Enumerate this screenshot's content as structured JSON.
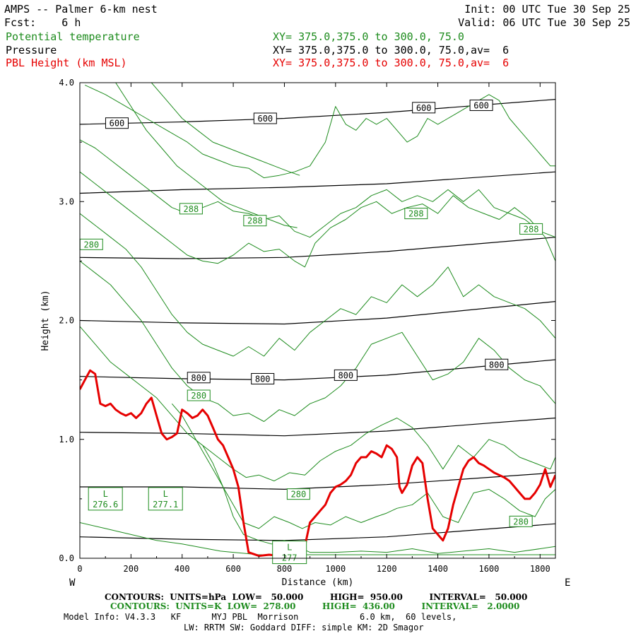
{
  "header": {
    "title": "AMPS -- Palmer 6-km nest",
    "fcst_label": "Fcst:",
    "fcst_value": "6 h",
    "init": "Init: 00 UTC Tue 30 Sep 25",
    "valid": "Valid: 06 UTC Tue 30 Sep 25",
    "field1": "Potential temperature",
    "field1_xy": "XY= 375.0,375.0 to 300.0, 75.0",
    "field2": "Pressure",
    "field2_xy": "XY= 375.0,375.0 to 300.0, 75.0,av=  6",
    "field3": "PBL Height (km MSL)",
    "field3_xy": "XY= 375.0,375.0 to 300.0, 75.0,av=  6"
  },
  "footer": {
    "contours_p": "CONTOURS:  UNITS=hPa  LOW=   50.000         HIGH=  950.00         INTERVAL=   50.000",
    "contours_k": "CONTOURS:  UNITS=K  LOW=  278.00         HIGH=  436.00         INTERVAL=   2.0000",
    "model1": "Model Info: V4.3.3   KF      MYJ PBL  Morrison            6.0 km,  60 levels,",
    "model2": "LW: RRTM SW: Goddard DIFF: simple KM: 2D Smagor"
  },
  "colors": {
    "theta": "#1e8c1e",
    "pressure": "#000000",
    "pbl": "#e60000"
  },
  "chart_data": {
    "type": "line",
    "xlabel": "Distance (km)",
    "ylabel": "Height (km)",
    "xlim": [
      0,
      1860
    ],
    "ylim": [
      0,
      4.0
    ],
    "xticks": [
      0,
      200,
      400,
      600,
      800,
      1000,
      1200,
      1400,
      1600,
      1800
    ],
    "yticks": [
      0.0,
      1.0,
      2.0,
      3.0,
      4.0
    ],
    "xtick_labels": [
      "0",
      "200",
      "400",
      "600",
      "800",
      "1000",
      "1200",
      "1400",
      "1600",
      "1800"
    ],
    "ytick_labels": [
      "0.0",
      "1.0",
      "2.0",
      "3.0",
      "4.0"
    ],
    "left_end_label": "W",
    "right_end_label": "E",
    "pressure_contours": [
      {
        "x": [
          0,
          400,
          800,
          1200,
          1860
        ],
        "y": [
          0.18,
          0.16,
          0.15,
          0.18,
          0.29
        ]
      },
      {
        "x": [
          0,
          400,
          800,
          1200,
          1860
        ],
        "y": [
          0.6,
          0.6,
          0.58,
          0.62,
          0.72
        ]
      },
      {
        "x": [
          0,
          400,
          800,
          1200,
          1860
        ],
        "y": [
          1.06,
          1.05,
          1.03,
          1.07,
          1.18
        ]
      },
      {
        "x": [
          0,
          400,
          800,
          1200,
          1860
        ],
        "y": [
          1.53,
          1.51,
          1.5,
          1.54,
          1.67
        ]
      },
      {
        "x": [
          0,
          400,
          800,
          1200,
          1860
        ],
        "y": [
          2.0,
          1.98,
          1.97,
          2.02,
          2.16
        ]
      },
      {
        "x": [
          0,
          400,
          800,
          1200,
          1860
        ],
        "y": [
          2.53,
          2.52,
          2.53,
          2.58,
          2.7
        ]
      },
      {
        "x": [
          0,
          400,
          800,
          1200,
          1860
        ],
        "y": [
          3.07,
          3.1,
          3.12,
          3.15,
          3.25
        ]
      },
      {
        "x": [
          0,
          400,
          800,
          1200,
          1860
        ],
        "y": [
          3.65,
          3.67,
          3.7,
          3.75,
          3.86
        ]
      }
    ],
    "pressure_labels": [
      {
        "x": 145,
        "y": 3.66,
        "text": "600"
      },
      {
        "x": 725,
        "y": 3.7,
        "text": "600"
      },
      {
        "x": 1345,
        "y": 3.79,
        "text": "600"
      },
      {
        "x": 1570,
        "y": 3.81,
        "text": "600"
      },
      {
        "x": 465,
        "y": 1.52,
        "text": "800"
      },
      {
        "x": 715,
        "y": 1.51,
        "text": "800"
      },
      {
        "x": 1040,
        "y": 1.54,
        "text": "800"
      },
      {
        "x": 1630,
        "y": 1.63,
        "text": "800"
      }
    ],
    "theta_contours": [
      {
        "x": [
          0,
          100,
          200,
          300,
          400,
          500,
          550,
          600,
          650,
          700,
          1860
        ],
        "y": [
          0.3,
          0.25,
          0.2,
          0.15,
          0.12,
          0.08,
          0.06,
          0.05,
          0.04,
          0.03,
          0.03
        ]
      },
      {
        "x": [
          480,
          520,
          560,
          600,
          640,
          700,
          750,
          800,
          850,
          900,
          1000,
          1100,
          1200,
          1300,
          1400,
          1500,
          1600,
          1700,
          1800,
          1860
        ],
        "y": [
          0.95,
          0.8,
          0.6,
          0.35,
          0.2,
          0.15,
          0.12,
          0.15,
          0.1,
          0.05,
          0.05,
          0.06,
          0.05,
          0.08,
          0.04,
          0.06,
          0.08,
          0.05,
          0.08,
          0.1
        ]
      },
      {
        "x": [
          360,
          400,
          440,
          480,
          520,
          560,
          600,
          640,
          700,
          760,
          820,
          870,
          920,
          980,
          1040,
          1100,
          1160,
          1200,
          1240,
          1300,
          1360,
          1420,
          1480,
          1540,
          1600,
          1660,
          1720,
          1780,
          1820,
          1860
        ],
        "y": [
          1.3,
          1.2,
          1.05,
          0.9,
          0.75,
          0.6,
          0.45,
          0.3,
          0.25,
          0.35,
          0.3,
          0.25,
          0.3,
          0.28,
          0.35,
          0.3,
          0.35,
          0.38,
          0.42,
          0.45,
          0.55,
          0.35,
          0.3,
          0.55,
          0.58,
          0.5,
          0.4,
          0.35,
          0.5,
          0.58
        ]
      },
      {
        "x": [
          0,
          60,
          120,
          180,
          240,
          300,
          360,
          420,
          480,
          540,
          600,
          650,
          700,
          760,
          820,
          880,
          940,
          1000,
          1060,
          1120,
          1180,
          1240,
          1300,
          1360,
          1420,
          1480,
          1540,
          1600,
          1660,
          1720,
          1780,
          1840,
          1860
        ],
        "y": [
          1.95,
          1.8,
          1.65,
          1.55,
          1.45,
          1.35,
          1.2,
          1.05,
          0.95,
          0.85,
          0.75,
          0.68,
          0.7,
          0.65,
          0.72,
          0.7,
          0.82,
          0.9,
          0.95,
          1.05,
          1.12,
          1.18,
          1.1,
          0.95,
          0.75,
          0.95,
          0.85,
          1.0,
          0.95,
          0.85,
          0.8,
          0.75,
          0.85
        ]
      },
      {
        "x": [
          0,
          60,
          120,
          180,
          240,
          300,
          360,
          420,
          480,
          540,
          600,
          660,
          720,
          780,
          840,
          900,
          960,
          1020,
          1080,
          1140,
          1200,
          1260,
          1320,
          1380,
          1440,
          1500,
          1560,
          1620,
          1680,
          1740,
          1800,
          1840,
          1860
        ],
        "y": [
          2.5,
          2.4,
          2.3,
          2.15,
          2.0,
          1.8,
          1.6,
          1.45,
          1.35,
          1.3,
          1.2,
          1.22,
          1.15,
          1.25,
          1.2,
          1.3,
          1.35,
          1.45,
          1.6,
          1.8,
          1.85,
          1.9,
          1.7,
          1.5,
          1.55,
          1.65,
          1.85,
          1.75,
          1.6,
          1.5,
          1.45,
          1.35,
          1.3
        ]
      },
      {
        "x": [
          0,
          60,
          120,
          180,
          240,
          300,
          360,
          420,
          480,
          540,
          600,
          660,
          720,
          780,
          840,
          900,
          960,
          1020,
          1080,
          1140,
          1200,
          1260,
          1320,
          1380,
          1440,
          1500,
          1560,
          1620,
          1680,
          1740,
          1800,
          1840,
          1860
        ],
        "y": [
          2.9,
          2.8,
          2.7,
          2.6,
          2.45,
          2.25,
          2.05,
          1.9,
          1.8,
          1.75,
          1.7,
          1.78,
          1.7,
          1.85,
          1.75,
          1.9,
          2.0,
          2.1,
          2.05,
          2.2,
          2.15,
          2.3,
          2.2,
          2.3,
          2.45,
          2.2,
          2.3,
          2.2,
          2.15,
          2.1,
          2.0,
          1.9,
          1.85
        ]
      },
      {
        "x": [
          0,
          60,
          120,
          180,
          240,
          300,
          360,
          420,
          480,
          540,
          600,
          660,
          720,
          780,
          840,
          880,
          920,
          980,
          1040,
          1100,
          1160,
          1220,
          1280,
          1340,
          1400,
          1460,
          1520,
          1580,
          1640,
          1700,
          1760,
          1820,
          1860
        ],
        "y": [
          3.25,
          3.15,
          3.05,
          2.95,
          2.85,
          2.75,
          2.65,
          2.55,
          2.5,
          2.48,
          2.55,
          2.65,
          2.58,
          2.6,
          2.5,
          2.45,
          2.65,
          2.78,
          2.85,
          2.95,
          3.0,
          2.9,
          2.95,
          2.98,
          2.9,
          3.05,
          2.95,
          2.9,
          2.85,
          2.95,
          2.85,
          2.7,
          2.5
        ]
      },
      {
        "x": [
          0,
          60,
          120,
          180,
          240,
          300,
          360,
          420,
          480,
          540,
          600,
          660,
          720,
          780,
          840,
          900,
          960,
          1020,
          1080,
          1140,
          1200,
          1260,
          1320,
          1380,
          1440,
          1500,
          1560,
          1620,
          1680,
          1740,
          1800,
          1860
        ],
        "y": [
          3.52,
          3.45,
          3.35,
          3.25,
          3.15,
          3.05,
          2.95,
          2.9,
          2.95,
          3.0,
          2.92,
          2.9,
          2.85,
          2.88,
          2.75,
          2.7,
          2.8,
          2.9,
          2.95,
          3.05,
          3.1,
          3.0,
          3.05,
          3.0,
          3.1,
          3.0,
          3.1,
          2.95,
          2.9,
          2.85,
          2.75,
          2.7
        ]
      },
      {
        "x": [
          20,
          100,
          180,
          260,
          340,
          420,
          480,
          540,
          600,
          660,
          720,
          780,
          840,
          900,
          960,
          1000,
          1040,
          1080,
          1120,
          1160,
          1200,
          1240,
          1280,
          1320,
          1360,
          1400,
          1440,
          1480,
          1520,
          1560,
          1600,
          1640,
          1680,
          1720,
          1760,
          1800,
          1840,
          1860
        ],
        "y": [
          3.98,
          3.9,
          3.8,
          3.7,
          3.6,
          3.5,
          3.4,
          3.35,
          3.3,
          3.28,
          3.2,
          3.22,
          3.25,
          3.3,
          3.5,
          3.8,
          3.65,
          3.6,
          3.7,
          3.65,
          3.7,
          3.6,
          3.5,
          3.55,
          3.7,
          3.65,
          3.7,
          3.75,
          3.8,
          3.85,
          3.9,
          3.85,
          3.7,
          3.6,
          3.5,
          3.4,
          3.3,
          3.3
        ]
      },
      {
        "x": [
          280,
          340,
          400,
          460,
          520,
          580,
          640,
          700,
          760,
          820,
          860
        ],
        "y": [
          4.0,
          3.85,
          3.7,
          3.6,
          3.5,
          3.45,
          3.4,
          3.35,
          3.3,
          3.25,
          3.22
        ]
      },
      {
        "x": [
          140,
          200,
          260,
          320,
          380,
          440,
          500,
          560,
          620,
          680,
          740,
          800,
          850
        ],
        "y": [
          4.0,
          3.8,
          3.6,
          3.45,
          3.3,
          3.2,
          3.1,
          3.0,
          2.95,
          2.9,
          2.85,
          2.8,
          2.78
        ]
      }
    ],
    "theta_labels": [
      {
        "x": 45,
        "y": 2.64,
        "text": "280"
      },
      {
        "x": 465,
        "y": 1.37,
        "text": "280"
      },
      {
        "x": 855,
        "y": 0.54,
        "text": "280"
      },
      {
        "x": 1725,
        "y": 0.31,
        "text": "280"
      },
      {
        "x": 435,
        "y": 2.94,
        "text": "288"
      },
      {
        "x": 685,
        "y": 2.84,
        "text": "288"
      },
      {
        "x": 1315,
        "y": 2.9,
        "text": "288"
      },
      {
        "x": 1765,
        "y": 2.77,
        "text": "288"
      }
    ],
    "low_labels": [
      {
        "x": 100,
        "y": 0.5,
        "label": "L",
        "value": "276.6"
      },
      {
        "x": 335,
        "y": 0.5,
        "label": "L",
        "value": "277.1"
      },
      {
        "x": 820,
        "y": 0.05,
        "label": "L",
        "value": "277"
      }
    ],
    "series": [
      {
        "name": "PBL Height (km MSL)",
        "x": [
          0,
          20,
          40,
          60,
          80,
          100,
          120,
          140,
          160,
          180,
          200,
          220,
          240,
          260,
          280,
          300,
          320,
          340,
          360,
          380,
          400,
          420,
          440,
          460,
          480,
          500,
          520,
          540,
          560,
          580,
          600,
          620,
          640,
          660,
          700,
          740,
          780,
          820,
          860,
          880,
          900,
          920,
          940,
          960,
          980,
          1000,
          1020,
          1040,
          1060,
          1080,
          1100,
          1120,
          1140,
          1160,
          1180,
          1200,
          1220,
          1240,
          1250,
          1260,
          1280,
          1300,
          1320,
          1340,
          1360,
          1380,
          1400,
          1420,
          1440,
          1460,
          1480,
          1500,
          1520,
          1540,
          1560,
          1580,
          1600,
          1620,
          1640,
          1660,
          1680,
          1700,
          1720,
          1740,
          1760,
          1780,
          1800,
          1820,
          1840,
          1860
        ],
        "y": [
          1.42,
          1.5,
          1.58,
          1.55,
          1.3,
          1.28,
          1.3,
          1.25,
          1.22,
          1.2,
          1.22,
          1.18,
          1.22,
          1.3,
          1.35,
          1.2,
          1.05,
          1.0,
          1.02,
          1.05,
          1.25,
          1.22,
          1.18,
          1.2,
          1.25,
          1.2,
          1.1,
          1.0,
          0.95,
          0.85,
          0.75,
          0.6,
          0.3,
          0.05,
          0.02,
          0.03,
          0.02,
          0.02,
          0.03,
          0.1,
          0.3,
          0.35,
          0.4,
          0.45,
          0.55,
          0.6,
          0.62,
          0.65,
          0.7,
          0.8,
          0.85,
          0.85,
          0.9,
          0.88,
          0.85,
          0.95,
          0.92,
          0.85,
          0.6,
          0.55,
          0.62,
          0.78,
          0.85,
          0.8,
          0.5,
          0.25,
          0.2,
          0.15,
          0.25,
          0.45,
          0.6,
          0.75,
          0.82,
          0.85,
          0.8,
          0.78,
          0.75,
          0.72,
          0.7,
          0.68,
          0.65,
          0.6,
          0.55,
          0.5,
          0.5,
          0.55,
          0.62,
          0.75,
          0.6,
          0.7
        ]
      }
    ]
  }
}
